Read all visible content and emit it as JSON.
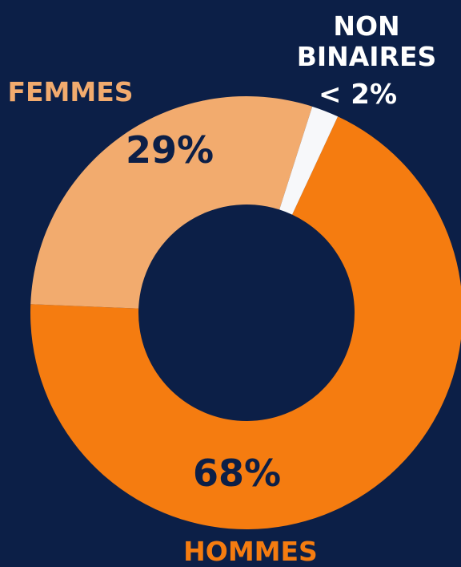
{
  "chart_data": {
    "type": "donut",
    "categories": [
      "HOMMES",
      "FEMMES",
      "NON BINAIRES"
    ],
    "values": [
      68,
      29,
      2
    ],
    "value_labels": [
      "68%",
      "29%",
      "< 2%"
    ],
    "colors": [
      "#f57c10",
      "#f2ab6e",
      "#f7f8fa"
    ]
  }
}
